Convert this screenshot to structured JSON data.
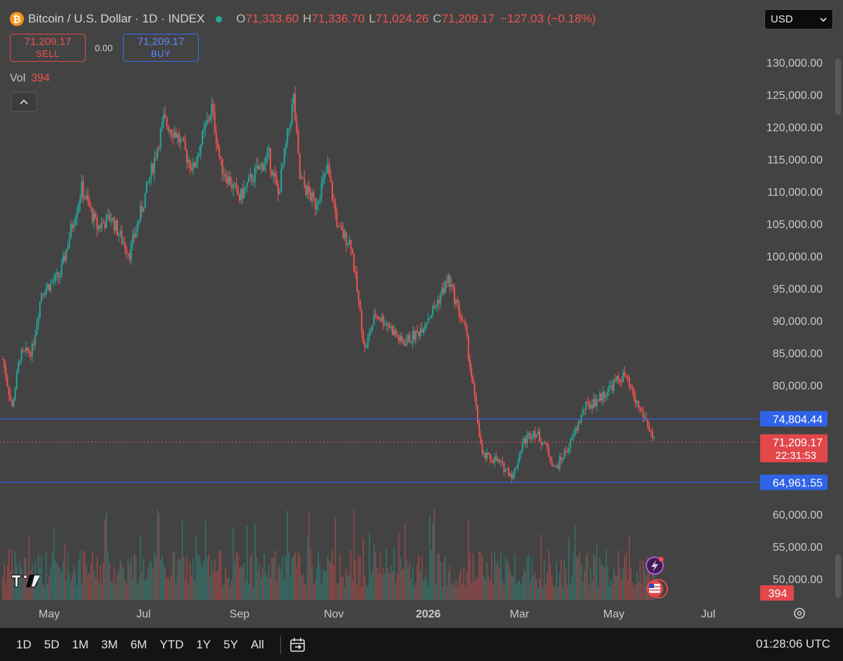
{
  "header": {
    "logo_glyph": "₿",
    "symbol_title": "Bitcoin / U.S. Dollar · 1D · INDEX",
    "open_label": "O",
    "open_value": "71,333.60",
    "high_label": "H",
    "high_value": "71,336.70",
    "low_label": "L",
    "low_value": "71,024.26",
    "close_label": "C",
    "close_value": "71,209.17",
    "change": "−127.03 (−0.18%)"
  },
  "trade": {
    "sell_price": "71,209.17",
    "sell_label": "SELL",
    "spread": "0.00",
    "buy_price": "71,209.17",
    "buy_label": "BUY"
  },
  "volume": {
    "label": "Vol",
    "value": "394"
  },
  "currency": {
    "selected": "USD"
  },
  "bottom_bar": {
    "ranges": [
      "1D",
      "5D",
      "1M",
      "3M",
      "6M",
      "YTD",
      "1Y",
      "5Y",
      "All"
    ],
    "clock": "01:28:06 UTC"
  },
  "colors": {
    "up": "#26a69a",
    "down": "#ef5350",
    "line": "#2f5fe6",
    "background": "#434343"
  },
  "chart_data": {
    "type": "candlestick",
    "y_axis_ticks": [
      "130,000.00",
      "125,000.00",
      "120,000.00",
      "115,000.00",
      "110,000.00",
      "105,000.00",
      "100,000.00",
      "95,000.00",
      "90,000.00",
      "85,000.00",
      "80,000.00",
      "60,000.00",
      "55,000.00",
      "50,000.00"
    ],
    "x_axis_ticks": [
      "May",
      "Jul",
      "Sep",
      "Nov",
      "2026",
      "Mar",
      "May",
      "Jul"
    ],
    "ylim": [
      48000,
      133000
    ],
    "horizontal_lines": [
      {
        "value": 74804.44,
        "label": "74,804.44"
      },
      {
        "value": 64961.55,
        "label": "64,961.55"
      }
    ],
    "last_price": {
      "value": 71209.17,
      "label": "71,209.17",
      "countdown": "22:31:53"
    },
    "volume_label": "394",
    "close_path": [
      [
        "2025-04-01",
        84000
      ],
      [
        "2025-04-07",
        76500
      ],
      [
        "2025-04-12",
        84500
      ],
      [
        "2025-04-20",
        85500
      ],
      [
        "2025-04-26",
        94500
      ],
      [
        "2025-05-08",
        97000
      ],
      [
        "2025-05-15",
        104000
      ],
      [
        "2025-05-22",
        110500
      ],
      [
        "2025-06-01",
        104500
      ],
      [
        "2025-06-10",
        106000
      ],
      [
        "2025-06-17",
        102500
      ],
      [
        "2025-06-22",
        100500
      ],
      [
        "2025-06-30",
        107500
      ],
      [
        "2025-07-10",
        117000
      ],
      [
        "2025-07-14",
        121000
      ],
      [
        "2025-07-22",
        119000
      ],
      [
        "2025-08-02",
        113500
      ],
      [
        "2025-08-14",
        123000
      ],
      [
        "2025-08-20",
        114000
      ],
      [
        "2025-09-01",
        109000
      ],
      [
        "2025-09-10",
        112500
      ],
      [
        "2025-09-20",
        115500
      ],
      [
        "2025-09-26",
        109500
      ],
      [
        "2025-10-06",
        124500
      ],
      [
        "2025-10-10",
        112000
      ],
      [
        "2025-10-20",
        108000
      ],
      [
        "2025-10-28",
        113500
      ],
      [
        "2025-11-04",
        104000
      ],
      [
        "2025-11-12",
        102000
      ],
      [
        "2025-11-21",
        85500
      ],
      [
        "2025-11-28",
        91000
      ],
      [
        "2025-12-06",
        89500
      ],
      [
        "2025-12-15",
        86500
      ],
      [
        "2025-12-25",
        88000
      ],
      [
        "2026-01-05",
        92000
      ],
      [
        "2026-01-14",
        96500
      ],
      [
        "2026-01-25",
        88500
      ],
      [
        "2026-02-05",
        69000
      ],
      [
        "2026-02-13",
        68500
      ],
      [
        "2026-02-25",
        66000
      ],
      [
        "2026-03-03",
        71000
      ],
      [
        "2026-03-10",
        73000
      ],
      [
        "2026-03-17",
        71000
      ],
      [
        "2026-03-24",
        67000
      ],
      [
        "2026-04-03",
        71000
      ],
      [
        "2026-04-12",
        76500
      ],
      [
        "2026-04-22",
        78000
      ],
      [
        "2026-05-02",
        80500
      ],
      [
        "2026-05-08",
        81500
      ],
      [
        "2026-05-15",
        77500
      ],
      [
        "2026-05-22",
        74500
      ],
      [
        "2026-05-27",
        71209
      ]
    ]
  }
}
